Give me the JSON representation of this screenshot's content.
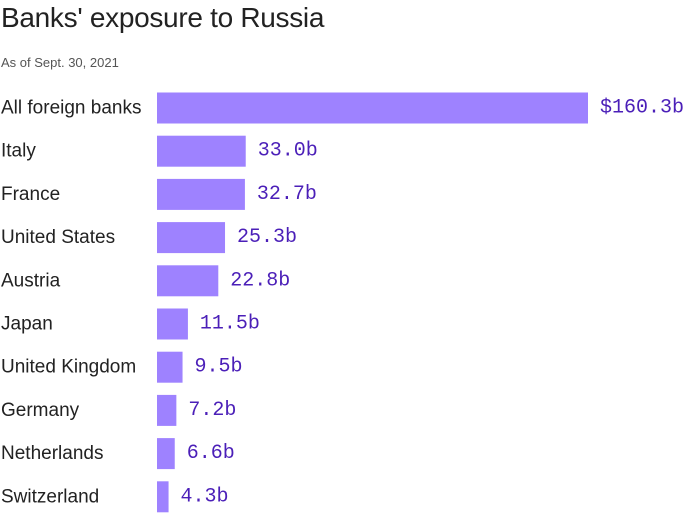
{
  "title": "Banks' exposure to Russia",
  "subtitle": "As of Sept. 30, 2021",
  "colors": {
    "bar": "#9e82ff",
    "value_text": "#4b1fb8"
  },
  "chart_data": {
    "type": "bar",
    "orientation": "horizontal",
    "title": "Banks' exposure to Russia",
    "subtitle": "As of Sept. 30, 2021",
    "xlabel": "",
    "ylabel": "",
    "categories": [
      "All foreign banks",
      "Italy",
      "France",
      "United States",
      "Austria",
      "Japan",
      "United Kingdom",
      "Germany",
      "Netherlands",
      "Switzerland"
    ],
    "values": [
      160.3,
      33.0,
      32.7,
      25.3,
      22.8,
      11.5,
      9.5,
      7.2,
      6.6,
      4.3
    ],
    "value_labels": [
      "$160.3b",
      "33.0b",
      "32.7b",
      "25.3b",
      "22.8b",
      "11.5b",
      "9.5b",
      "7.2b",
      "6.6b",
      "4.3b"
    ],
    "xlim": [
      0,
      160.3
    ],
    "grid": false,
    "legend": "none"
  }
}
